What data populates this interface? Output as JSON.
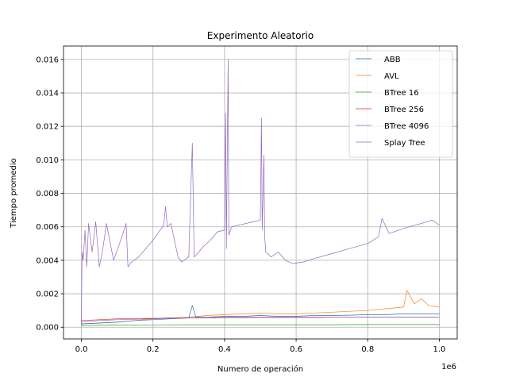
{
  "chart_data": {
    "type": "line",
    "title": "Experimento Aleatorio",
    "xlabel": "Numero de operación",
    "ylabel": "Tiempo promedio",
    "x_offset_label": "1e6",
    "xlim": [
      -0.05,
      1.05
    ],
    "ylim": [
      -0.0007,
      0.0168
    ],
    "x_scale_note": "x values in units of 1e6 operations",
    "x_ticks": [
      0.0,
      0.2,
      0.4,
      0.6,
      0.8,
      1.0
    ],
    "x_tick_labels": [
      "0.0",
      "0.2",
      "0.4",
      "0.6",
      "0.8",
      "1.0"
    ],
    "y_ticks": [
      0.0,
      0.002,
      0.004,
      0.006,
      0.008,
      0.01,
      0.012,
      0.014,
      0.016
    ],
    "y_tick_labels": [
      "0.000",
      "0.002",
      "0.004",
      "0.006",
      "0.008",
      "0.010",
      "0.012",
      "0.014",
      "0.016"
    ],
    "grid": true,
    "legend_position": "top-right",
    "series": [
      {
        "name": "ABB",
        "color": "#1f77b4",
        "x": [
          0.0,
          0.05,
          0.1,
          0.15,
          0.2,
          0.25,
          0.3,
          0.31,
          0.32,
          0.35,
          0.4,
          0.45,
          0.5,
          0.55,
          0.6,
          0.65,
          0.7,
          0.75,
          0.8,
          0.85,
          0.9,
          0.95,
          1.0
        ],
        "values": [
          0.0002,
          0.00025,
          0.0003,
          0.0004,
          0.00045,
          0.0005,
          0.00055,
          0.0013,
          0.0006,
          0.0006,
          0.00065,
          0.00065,
          0.0007,
          0.00065,
          0.00065,
          0.0007,
          0.0007,
          0.00072,
          0.00075,
          0.00075,
          0.0008,
          0.0008,
          0.0008
        ]
      },
      {
        "name": "AVL",
        "color": "#ff7f0e",
        "x": [
          0.0,
          0.05,
          0.1,
          0.15,
          0.2,
          0.25,
          0.3,
          0.35,
          0.4,
          0.45,
          0.5,
          0.55,
          0.6,
          0.65,
          0.7,
          0.75,
          0.8,
          0.85,
          0.9,
          0.91,
          0.93,
          0.95,
          0.97,
          1.0
        ],
        "values": [
          0.0002,
          0.00025,
          0.0003,
          0.0004,
          0.0005,
          0.00055,
          0.0006,
          0.0007,
          0.00075,
          0.0008,
          0.00085,
          0.0008,
          0.0008,
          0.00085,
          0.0009,
          0.00095,
          0.001,
          0.0011,
          0.0012,
          0.0022,
          0.0014,
          0.0017,
          0.0013,
          0.0012
        ]
      },
      {
        "name": "BTree 16",
        "color": "#2ca02c",
        "x": [
          0.0,
          0.1,
          0.2,
          0.3,
          0.4,
          0.5,
          0.6,
          0.7,
          0.8,
          0.9,
          1.0
        ],
        "values": [
          0.0001,
          0.00013,
          0.00014,
          0.00015,
          0.00015,
          0.00015,
          0.00015,
          0.00015,
          0.00016,
          0.00016,
          0.00016
        ]
      },
      {
        "name": "BTree 256",
        "color": "#d62728",
        "x": [
          0.0,
          0.05,
          0.1,
          0.15,
          0.2,
          0.25,
          0.3,
          0.35,
          0.4,
          0.45,
          0.5,
          0.55,
          0.6,
          0.65,
          0.7,
          0.75,
          0.8,
          0.85,
          0.9,
          0.95,
          1.0
        ],
        "values": [
          0.0004,
          0.00045,
          0.0005,
          0.00052,
          0.00053,
          0.00055,
          0.00055,
          0.00056,
          0.00057,
          0.00057,
          0.00058,
          0.00058,
          0.00058,
          0.00058,
          0.00059,
          0.00059,
          0.0006,
          0.0006,
          0.0006,
          0.0006,
          0.0006
        ]
      },
      {
        "name": "BTree 4096",
        "color": "#9467bd",
        "x": [
          0.0,
          0.002,
          0.005,
          0.01,
          0.015,
          0.02,
          0.03,
          0.04,
          0.05,
          0.06,
          0.07,
          0.09,
          0.11,
          0.125,
          0.13,
          0.14,
          0.16,
          0.18,
          0.2,
          0.23,
          0.235,
          0.24,
          0.25,
          0.27,
          0.28,
          0.3,
          0.31,
          0.315,
          0.32,
          0.34,
          0.36,
          0.38,
          0.4,
          0.403,
          0.405,
          0.41,
          0.412,
          0.42,
          0.44,
          0.46,
          0.48,
          0.5,
          0.503,
          0.505,
          0.51,
          0.512,
          0.515,
          0.53,
          0.55,
          0.57,
          0.59,
          0.62,
          0.65,
          0.7,
          0.75,
          0.8,
          0.83,
          0.84,
          0.86,
          0.9,
          0.95,
          0.98,
          1.0
        ],
        "values": [
          0.0001,
          0.0045,
          0.004,
          0.0058,
          0.0036,
          0.0062,
          0.0045,
          0.0063,
          0.0036,
          0.0047,
          0.0062,
          0.004,
          0.0052,
          0.0062,
          0.0036,
          0.0039,
          0.0042,
          0.0047,
          0.0052,
          0.0061,
          0.0072,
          0.006,
          0.0062,
          0.0042,
          0.0039,
          0.0042,
          0.011,
          0.0042,
          0.0043,
          0.0048,
          0.0052,
          0.0057,
          0.0058,
          0.0128,
          0.0047,
          0.016,
          0.0055,
          0.006,
          0.0061,
          0.0062,
          0.0063,
          0.0064,
          0.0125,
          0.0058,
          0.0103,
          0.0055,
          0.0045,
          0.0042,
          0.0045,
          0.004,
          0.0038,
          0.0039,
          0.0041,
          0.0044,
          0.0047,
          0.005,
          0.0054,
          0.0065,
          0.0056,
          0.0059,
          0.0062,
          0.0064,
          0.0061
        ]
      },
      {
        "name": "Splay Tree",
        "color": "#9467bd",
        "x": [
          0.0,
          0.05,
          0.1,
          0.2,
          0.3,
          0.4,
          0.5,
          0.6,
          0.7,
          0.8,
          0.9,
          1.0
        ],
        "values": [
          0.0003,
          0.0004,
          0.00045,
          0.0005,
          0.00055,
          0.0006,
          0.0006,
          0.0006,
          0.0006,
          0.0006,
          0.0006,
          0.0006
        ]
      }
    ]
  }
}
